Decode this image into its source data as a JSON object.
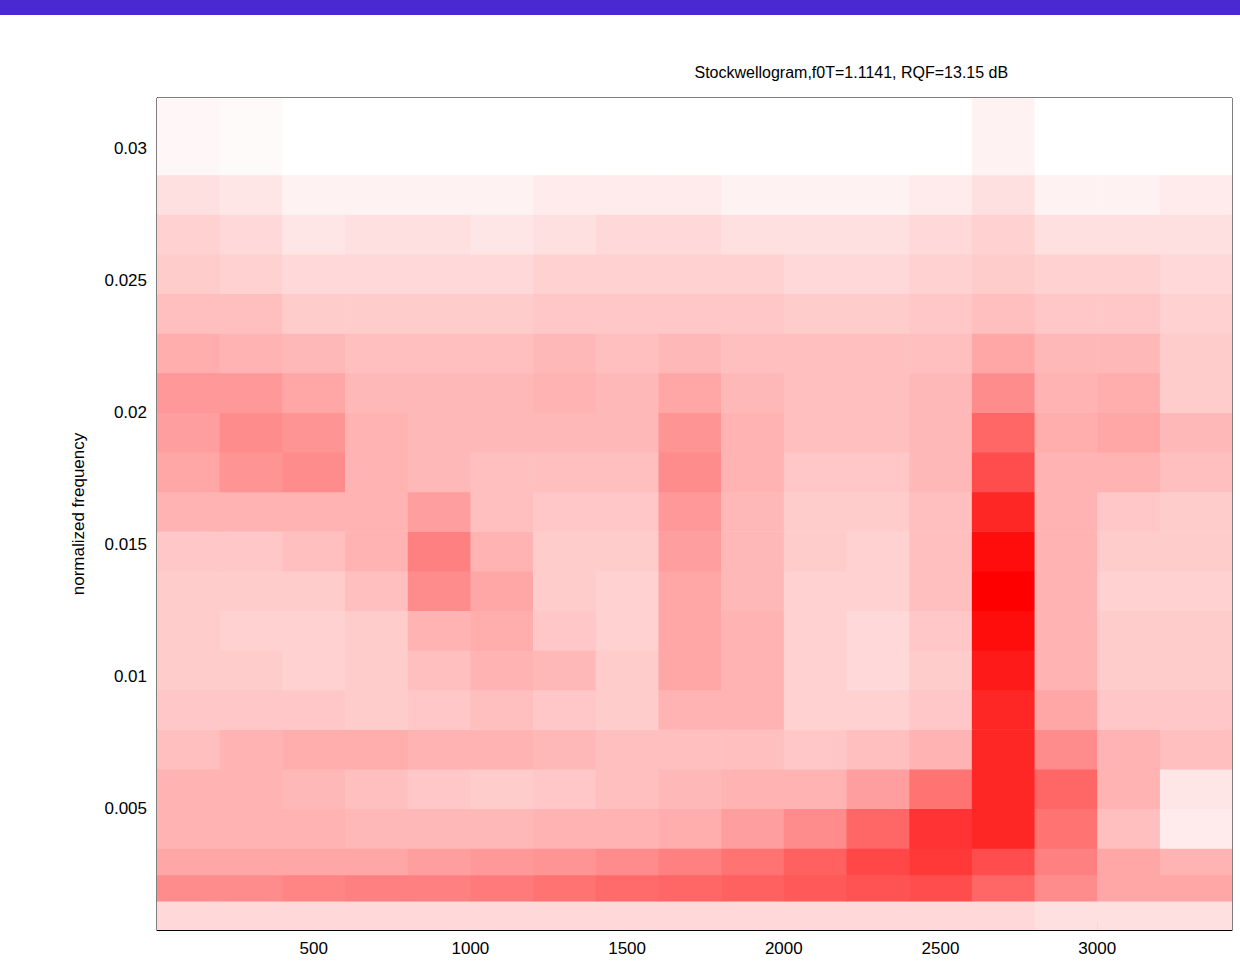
{
  "chart_data": {
    "type": "heatmap",
    "title": "Stockwellogram,f0T=1.1141, RQF=13.15 dB",
    "ylabel": "normalized frequency",
    "xlim": [
      0,
      3430
    ],
    "xticks": [
      500,
      1000,
      1500,
      2000,
      2500,
      3000
    ],
    "ylim": [
      0.0004,
      0.0319
    ],
    "yticks": [
      0.005,
      0.01,
      0.015,
      0.02,
      0.025,
      0.03
    ],
    "grid": false,
    "color": "#ff0000",
    "color_range": [
      0,
      1
    ],
    "x_bins": [
      0,
      200,
      400,
      600,
      800,
      1000,
      1200,
      1400,
      1600,
      1800,
      2000,
      2200,
      2400,
      2600,
      2800,
      3000,
      3200,
      3430
    ],
    "y_bins": [
      0.0004,
      0.0015,
      0.0025,
      0.0035,
      0.005,
      0.0065,
      0.008,
      0.0095,
      0.011,
      0.0125,
      0.014,
      0.0155,
      0.017,
      0.0185,
      0.02,
      0.0215,
      0.023,
      0.0245,
      0.026,
      0.0275,
      0.029,
      0.0319
    ],
    "cells": [
      [
        0.15,
        0.15,
        0.15,
        0.15,
        0.15,
        0.15,
        0.15,
        0.15,
        0.15,
        0.15,
        0.15,
        0.15,
        0.15,
        0.15,
        0.12,
        0.12,
        0.12
      ],
      [
        0.45,
        0.45,
        0.48,
        0.5,
        0.5,
        0.52,
        0.55,
        0.58,
        0.6,
        0.62,
        0.65,
        0.68,
        0.7,
        0.6,
        0.45,
        0.35,
        0.35
      ],
      [
        0.35,
        0.35,
        0.35,
        0.35,
        0.38,
        0.4,
        0.42,
        0.45,
        0.5,
        0.55,
        0.62,
        0.72,
        0.78,
        0.7,
        0.5,
        0.35,
        0.3
      ],
      [
        0.3,
        0.3,
        0.3,
        0.28,
        0.28,
        0.28,
        0.3,
        0.3,
        0.32,
        0.38,
        0.45,
        0.6,
        0.8,
        0.85,
        0.55,
        0.25,
        0.08
      ],
      [
        0.3,
        0.3,
        0.28,
        0.25,
        0.22,
        0.2,
        0.22,
        0.25,
        0.28,
        0.3,
        0.3,
        0.38,
        0.55,
        0.85,
        0.6,
        0.3,
        0.1
      ],
      [
        0.25,
        0.3,
        0.32,
        0.32,
        0.3,
        0.3,
        0.28,
        0.25,
        0.25,
        0.25,
        0.22,
        0.25,
        0.3,
        0.85,
        0.45,
        0.3,
        0.25
      ],
      [
        0.22,
        0.22,
        0.22,
        0.2,
        0.22,
        0.25,
        0.22,
        0.2,
        0.3,
        0.3,
        0.18,
        0.18,
        0.22,
        0.85,
        0.35,
        0.22,
        0.22
      ],
      [
        0.2,
        0.2,
        0.18,
        0.2,
        0.25,
        0.3,
        0.28,
        0.2,
        0.35,
        0.3,
        0.18,
        0.15,
        0.2,
        0.9,
        0.3,
        0.2,
        0.2
      ],
      [
        0.2,
        0.18,
        0.18,
        0.2,
        0.3,
        0.32,
        0.22,
        0.18,
        0.35,
        0.3,
        0.18,
        0.15,
        0.22,
        0.95,
        0.3,
        0.2,
        0.2
      ],
      [
        0.2,
        0.2,
        0.2,
        0.25,
        0.45,
        0.35,
        0.2,
        0.18,
        0.35,
        0.28,
        0.18,
        0.18,
        0.25,
        1.0,
        0.3,
        0.18,
        0.18
      ],
      [
        0.22,
        0.22,
        0.25,
        0.3,
        0.5,
        0.3,
        0.2,
        0.2,
        0.38,
        0.28,
        0.2,
        0.18,
        0.25,
        0.95,
        0.3,
        0.2,
        0.2
      ],
      [
        0.3,
        0.3,
        0.3,
        0.3,
        0.38,
        0.25,
        0.22,
        0.22,
        0.4,
        0.28,
        0.2,
        0.2,
        0.25,
        0.85,
        0.3,
        0.22,
        0.2
      ],
      [
        0.35,
        0.42,
        0.45,
        0.3,
        0.28,
        0.25,
        0.25,
        0.25,
        0.45,
        0.3,
        0.22,
        0.22,
        0.28,
        0.7,
        0.3,
        0.3,
        0.25
      ],
      [
        0.38,
        0.45,
        0.42,
        0.3,
        0.28,
        0.28,
        0.28,
        0.28,
        0.42,
        0.3,
        0.25,
        0.25,
        0.28,
        0.6,
        0.32,
        0.35,
        0.28
      ],
      [
        0.4,
        0.4,
        0.35,
        0.28,
        0.28,
        0.28,
        0.3,
        0.28,
        0.35,
        0.28,
        0.25,
        0.25,
        0.28,
        0.45,
        0.3,
        0.32,
        0.2
      ],
      [
        0.32,
        0.3,
        0.28,
        0.25,
        0.25,
        0.25,
        0.28,
        0.25,
        0.28,
        0.25,
        0.25,
        0.25,
        0.25,
        0.35,
        0.28,
        0.28,
        0.2
      ],
      [
        0.25,
        0.25,
        0.2,
        0.2,
        0.2,
        0.2,
        0.22,
        0.22,
        0.22,
        0.22,
        0.2,
        0.2,
        0.22,
        0.25,
        0.22,
        0.22,
        0.18
      ],
      [
        0.2,
        0.18,
        0.15,
        0.15,
        0.15,
        0.15,
        0.18,
        0.18,
        0.18,
        0.18,
        0.15,
        0.15,
        0.18,
        0.2,
        0.18,
        0.18,
        0.15
      ],
      [
        0.18,
        0.15,
        0.1,
        0.12,
        0.12,
        0.1,
        0.12,
        0.15,
        0.15,
        0.12,
        0.12,
        0.12,
        0.15,
        0.18,
        0.12,
        0.12,
        0.12
      ],
      [
        0.12,
        0.1,
        0.05,
        0.05,
        0.05,
        0.05,
        0.08,
        0.08,
        0.08,
        0.05,
        0.05,
        0.05,
        0.08,
        0.12,
        0.05,
        0.05,
        0.08
      ],
      [
        0.03,
        0.02,
        0,
        0,
        0,
        0,
        0,
        0,
        0,
        0,
        0,
        0,
        0,
        0.05,
        0,
        0,
        0
      ]
    ]
  }
}
